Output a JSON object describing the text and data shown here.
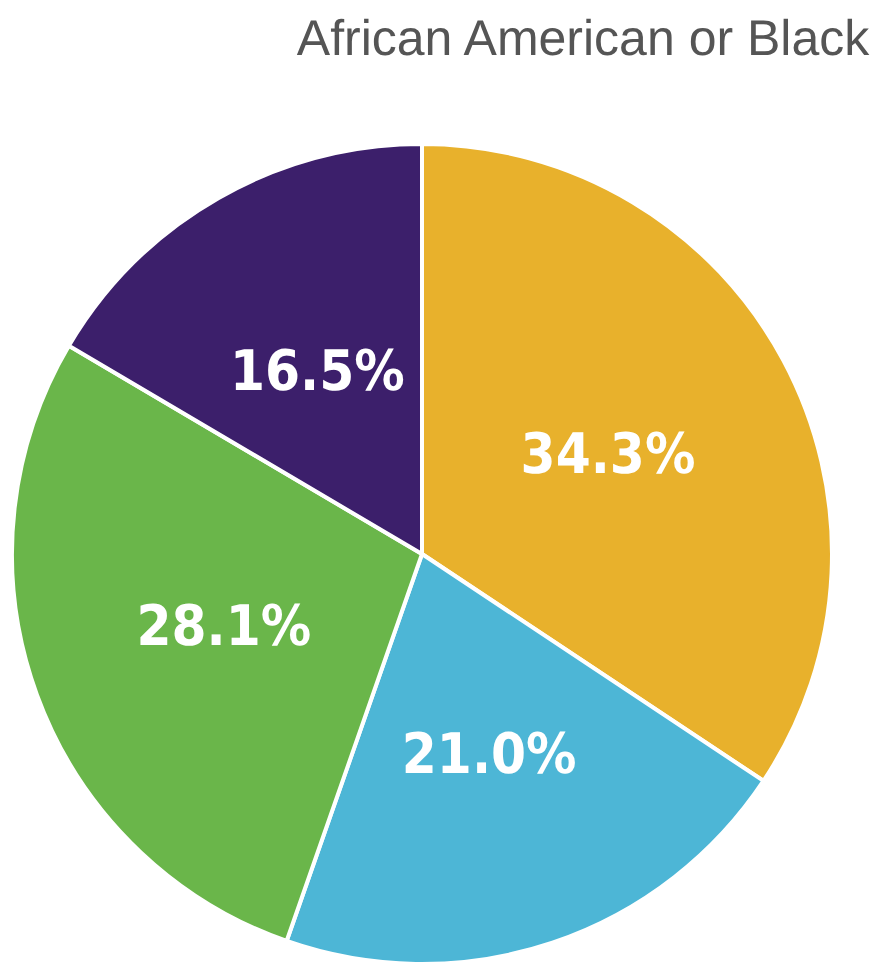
{
  "chart_data": {
    "type": "pie",
    "title": "African American or Black",
    "categories": [
      null,
      null,
      null,
      null
    ],
    "values": [
      34.3,
      21.0,
      28.1,
      16.5
    ],
    "colors": [
      "#e8b12c",
      "#4db6d6",
      "#6ab64a",
      "#3c1f6b"
    ],
    "value_labels": [
      "34.3%",
      "21.0%",
      "28.1%",
      "16.5%"
    ]
  }
}
